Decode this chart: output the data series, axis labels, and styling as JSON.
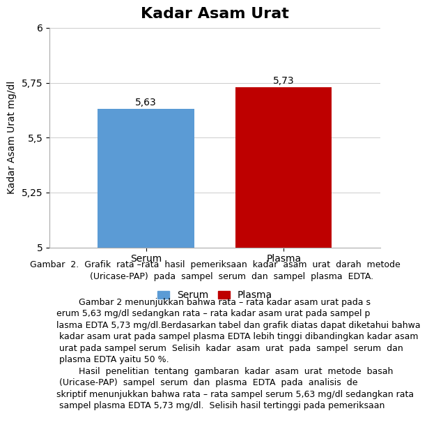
{
  "title": "Kadar Asam Urat",
  "categories": [
    "Serum",
    "Plasma"
  ],
  "values": [
    5.63,
    5.73
  ],
  "bar_colors": [
    "#5B9BD5",
    "#BE0000"
  ],
  "ylabel": "Kadar Asam Urat mg/dl",
  "ylim": [
    5.0,
    6.0
  ],
  "yticks": [
    5.0,
    5.25,
    5.5,
    5.75,
    6.0
  ],
  "ytick_labels": [
    "5",
    "5,25",
    "5,5",
    "5,75",
    "6"
  ],
  "bar_labels": [
    "5,63",
    "5,73"
  ],
  "legend_labels": [
    "Serum",
    "Plasma"
  ],
  "legend_colors": [
    "#5B9BD5",
    "#BE0000"
  ],
  "title_fontsize": 16,
  "label_fontsize": 10,
  "tick_fontsize": 10,
  "bar_label_fontsize": 10,
  "legend_fontsize": 10,
  "background_color": "#FFFFFF",
  "grid_color": "#CCCCCC",
  "bar_width": 0.35,
  "caption": "Gambar  2.  Grafik  rata –rata  hasil  pemeriksaan  kadar  asam  urat  darah  metode\n            (Uricase-PAP)  pada  sampel  serum  dan  sampel  plasma  EDTA.",
  "body_text": "        Gambar 2 menunjukkan bahwa rata – rata kadar asam urat pada s\nerum 5,63 mg/dl sedangkan rata – rata kadar asam urat pada sampel p\nlasma EDTA 5,73 mg/dl.Berdasarkan tabel dan grafik diatas dapat diketahui bahwa\n kadar asam urat pada sampel plasma EDTA lebih tinggi dibandingkan kadar asam urat\n pada sampel serum  Selisih  kadar  asam  urat  pada  sampel  serum  dan  plasma\n EDTA yaitu 50 %.\n        Hasil  penelitian  tentang  gambaran  kadar  asam  urat  metode  basah\n (Uricase-PAP)  sampel  serum  dan  plasma  EDTA  pada  analisis  de\nskriptif menunjukkan bahwa rata – rata sampel serum 5,63 mg/dl sedangkan rata – rata\n sampel plasma EDTA 5,73 mg/dl.  Selisih hasil tertinggi pada pemeriksaan"
}
